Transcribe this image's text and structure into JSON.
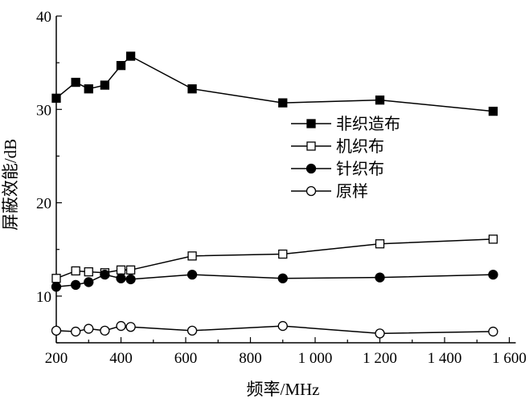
{
  "chart_data": {
    "type": "line",
    "title": "",
    "xlabel": "频率/MHz",
    "ylabel": "屏蔽效能/dB",
    "xlim": [
      200,
      1600
    ],
    "ylim": [
      5,
      40
    ],
    "xticks": [
      200,
      400,
      600,
      800,
      1000,
      1200,
      1400,
      1600
    ],
    "xtick_labels": [
      "200",
      "400",
      "600",
      "800",
      "1 000",
      "1 200",
      "1 400",
      "1 600"
    ],
    "yticks": [
      10,
      20,
      30,
      40
    ],
    "ytick_labels": [
      "10",
      "20",
      "30",
      "40"
    ],
    "grid": false,
    "legend_position": "center-right",
    "x": [
      200,
      260,
      300,
      350,
      400,
      430,
      620,
      900,
      1200,
      1550
    ],
    "series": [
      {
        "name": "非织造布",
        "marker": "filled-square",
        "values": [
          31.2,
          32.9,
          32.2,
          32.6,
          34.7,
          35.7,
          32.2,
          30.7,
          31.0,
          29.8
        ]
      },
      {
        "name": "机织布",
        "marker": "open-square",
        "values": [
          11.9,
          12.7,
          12.6,
          12.5,
          12.8,
          12.8,
          14.3,
          14.5,
          15.6,
          16.1
        ]
      },
      {
        "name": "针织布",
        "marker": "filled-circle",
        "values": [
          11.0,
          11.2,
          11.5,
          12.3,
          11.9,
          11.8,
          12.3,
          11.9,
          12.0,
          12.3
        ]
      },
      {
        "name": "原样",
        "marker": "open-circle",
        "values": [
          6.3,
          6.2,
          6.5,
          6.3,
          6.8,
          6.7,
          6.3,
          6.8,
          6.0,
          6.2
        ]
      }
    ]
  }
}
